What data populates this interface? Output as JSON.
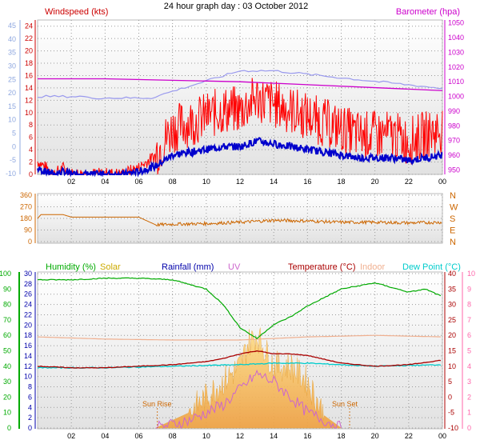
{
  "page": {
    "title": "24 hour graph day : 03 October 2012"
  },
  "colors": {
    "windspeed": "#d40000",
    "gust": "#ff0000",
    "avg_wind": "#0000cc",
    "barometer": "#cc00cc",
    "barometer_trend": "#9999ee",
    "direction": "#cc6600",
    "humidity": "#00aa00",
    "solar": "#ccaa00",
    "rainfall": "#0000aa",
    "uv": "#cc66cc",
    "temperature": "#aa0000",
    "indoor": "#f0b090",
    "dew_point": "#00cccc",
    "left_axis_wind": "#8fa8e0",
    "left_axis_hum": "#00aa00",
    "right_axis_uv": "#ff66aa"
  },
  "chart_data": [
    {
      "type": "line",
      "panel": "wind-barometer",
      "legend_left": "Windspeed (kts)",
      "legend_right": "Barometer (hpa)",
      "x_ticks": [
        "02",
        "04",
        "06",
        "08",
        "10",
        "12",
        "14",
        "16",
        "18",
        "20",
        "22",
        "00"
      ],
      "y_left_ticks": [
        "0",
        "2",
        "4",
        "6",
        "8",
        "10",
        "12",
        "14",
        "16",
        "18",
        "20",
        "22",
        "24"
      ],
      "y_left_outer_ticks": [
        "-10",
        "-5",
        "0",
        "5",
        "10",
        "15",
        "20",
        "25",
        "30",
        "35",
        "40",
        "45"
      ],
      "y_right_ticks": [
        "950",
        "960",
        "970",
        "980",
        "990",
        "1000",
        "1010",
        "1020",
        "1030",
        "1040",
        "1050"
      ],
      "ylim_left": [
        0,
        25
      ],
      "ylim_right": [
        947,
        1052
      ],
      "series": [
        {
          "name": "Windspeed (kts)",
          "x": [
            0,
            0.5,
            1,
            1.5,
            2,
            3,
            4,
            5,
            6,
            6.5,
            7,
            7.5,
            8,
            9,
            10,
            11,
            12,
            13,
            14,
            15,
            16,
            17,
            18,
            19,
            20,
            21,
            22,
            23,
            24
          ],
          "y": [
            2,
            1,
            0,
            1,
            0,
            0,
            0,
            0,
            1,
            2,
            3,
            5,
            7,
            8,
            9,
            10,
            10,
            12,
            11,
            10,
            9,
            8,
            7,
            6,
            6,
            6,
            5,
            6,
            7
          ]
        },
        {
          "name": "Barometer (hpa)",
          "x": [
            0,
            4,
            8,
            12,
            16,
            20,
            24
          ],
          "y": [
            1012,
            1012,
            1011,
            1010,
            1008,
            1006,
            1004
          ]
        }
      ]
    },
    {
      "type": "line",
      "panel": "wind-direction",
      "y_left_ticks": [
        "360",
        "270",
        "180",
        "90",
        "0"
      ],
      "y_right_ticks": [
        "N",
        "W",
        "S",
        "E",
        "N"
      ],
      "ylim": [
        0,
        360
      ],
      "series": [
        {
          "name": "Direction",
          "x": [
            0,
            0.2,
            1.5,
            2,
            6,
            7,
            8,
            10,
            12,
            14,
            16,
            18,
            20,
            22,
            24
          ],
          "y": [
            180,
            210,
            210,
            190,
            190,
            130,
            135,
            140,
            150,
            165,
            160,
            150,
            150,
            145,
            150
          ]
        }
      ]
    },
    {
      "type": "line",
      "panel": "temperature-humidity",
      "legend": [
        "Humidity (%)",
        "Solar",
        "Rainfall (mm)",
        "UV",
        "Temperature (°C)",
        "Indoor",
        "Dew Point (°C)"
      ],
      "x_ticks": [
        "02",
        "04",
        "06",
        "08",
        "10",
        "12",
        "14",
        "16",
        "18",
        "20",
        "22",
        "00"
      ],
      "y_left_outer_ticks": [
        "0",
        "10",
        "20",
        "30",
        "40",
        "50",
        "60",
        "70",
        "80",
        "90",
        "100"
      ],
      "y_left_inner_ticks": [
        "0",
        "2",
        "4",
        "6",
        "8",
        "10",
        "12",
        "14",
        "16",
        "18",
        "20",
        "22",
        "24",
        "26",
        "28",
        "30"
      ],
      "y_right_inner_ticks": [
        "-10",
        "-5",
        "0",
        "5",
        "10",
        "15",
        "20",
        "25",
        "30",
        "35",
        "40"
      ],
      "y_right_outer_ticks": [
        "0",
        "1",
        "2",
        "3",
        "4",
        "5",
        "6",
        "7",
        "8",
        "9",
        "10"
      ],
      "ylim_temp": [
        -10,
        40
      ],
      "series": [
        {
          "name": "Humidity (%)",
          "x": [
            0,
            2,
            4,
            6,
            8,
            10,
            11,
            12,
            13,
            14,
            15,
            16,
            18,
            20,
            22,
            23,
            24
          ],
          "y": [
            96,
            96,
            97,
            97,
            96,
            90,
            80,
            65,
            58,
            67,
            72,
            79,
            90,
            94,
            88,
            90,
            85
          ]
        },
        {
          "name": "Temperature (°C)",
          "x": [
            0,
            2,
            4,
            6,
            8,
            10,
            11,
            12,
            13,
            14,
            15,
            16,
            18,
            20,
            22,
            24
          ],
          "y": [
            10,
            9.5,
            9.5,
            10,
            10.5,
            11.5,
            12.5,
            14,
            15,
            14,
            14,
            13.5,
            11,
            10,
            10.5,
            12
          ]
        },
        {
          "name": "Indoor",
          "x": [
            0,
            4,
            8,
            12,
            16,
            20,
            24
          ],
          "y": [
            19.5,
            18.8,
            18.5,
            18.5,
            19.5,
            20,
            19.5
          ]
        },
        {
          "name": "Dew Point (°C)",
          "x": [
            0,
            4,
            8,
            12,
            14,
            16,
            20,
            24
          ],
          "y": [
            9.5,
            9.5,
            10,
            10.5,
            11,
            11,
            10,
            10.5
          ]
        },
        {
          "name": "Solar",
          "x": [
            7,
            8,
            9,
            10,
            11,
            12,
            12.5,
            13,
            13.5,
            14,
            15,
            16,
            17,
            18
          ],
          "y": [
            0,
            0.5,
            1,
            2,
            3,
            4,
            5.5,
            6,
            5,
            4,
            4,
            3,
            0.8,
            0
          ]
        },
        {
          "name": "UV",
          "x": [
            7,
            9,
            11,
            12,
            13,
            14,
            16,
            18
          ],
          "y": [
            0,
            0.5,
            1.5,
            2.5,
            3.5,
            3,
            1,
            0
          ]
        }
      ],
      "annotations": [
        "Sun Rise",
        "Sun Set"
      ]
    }
  ]
}
